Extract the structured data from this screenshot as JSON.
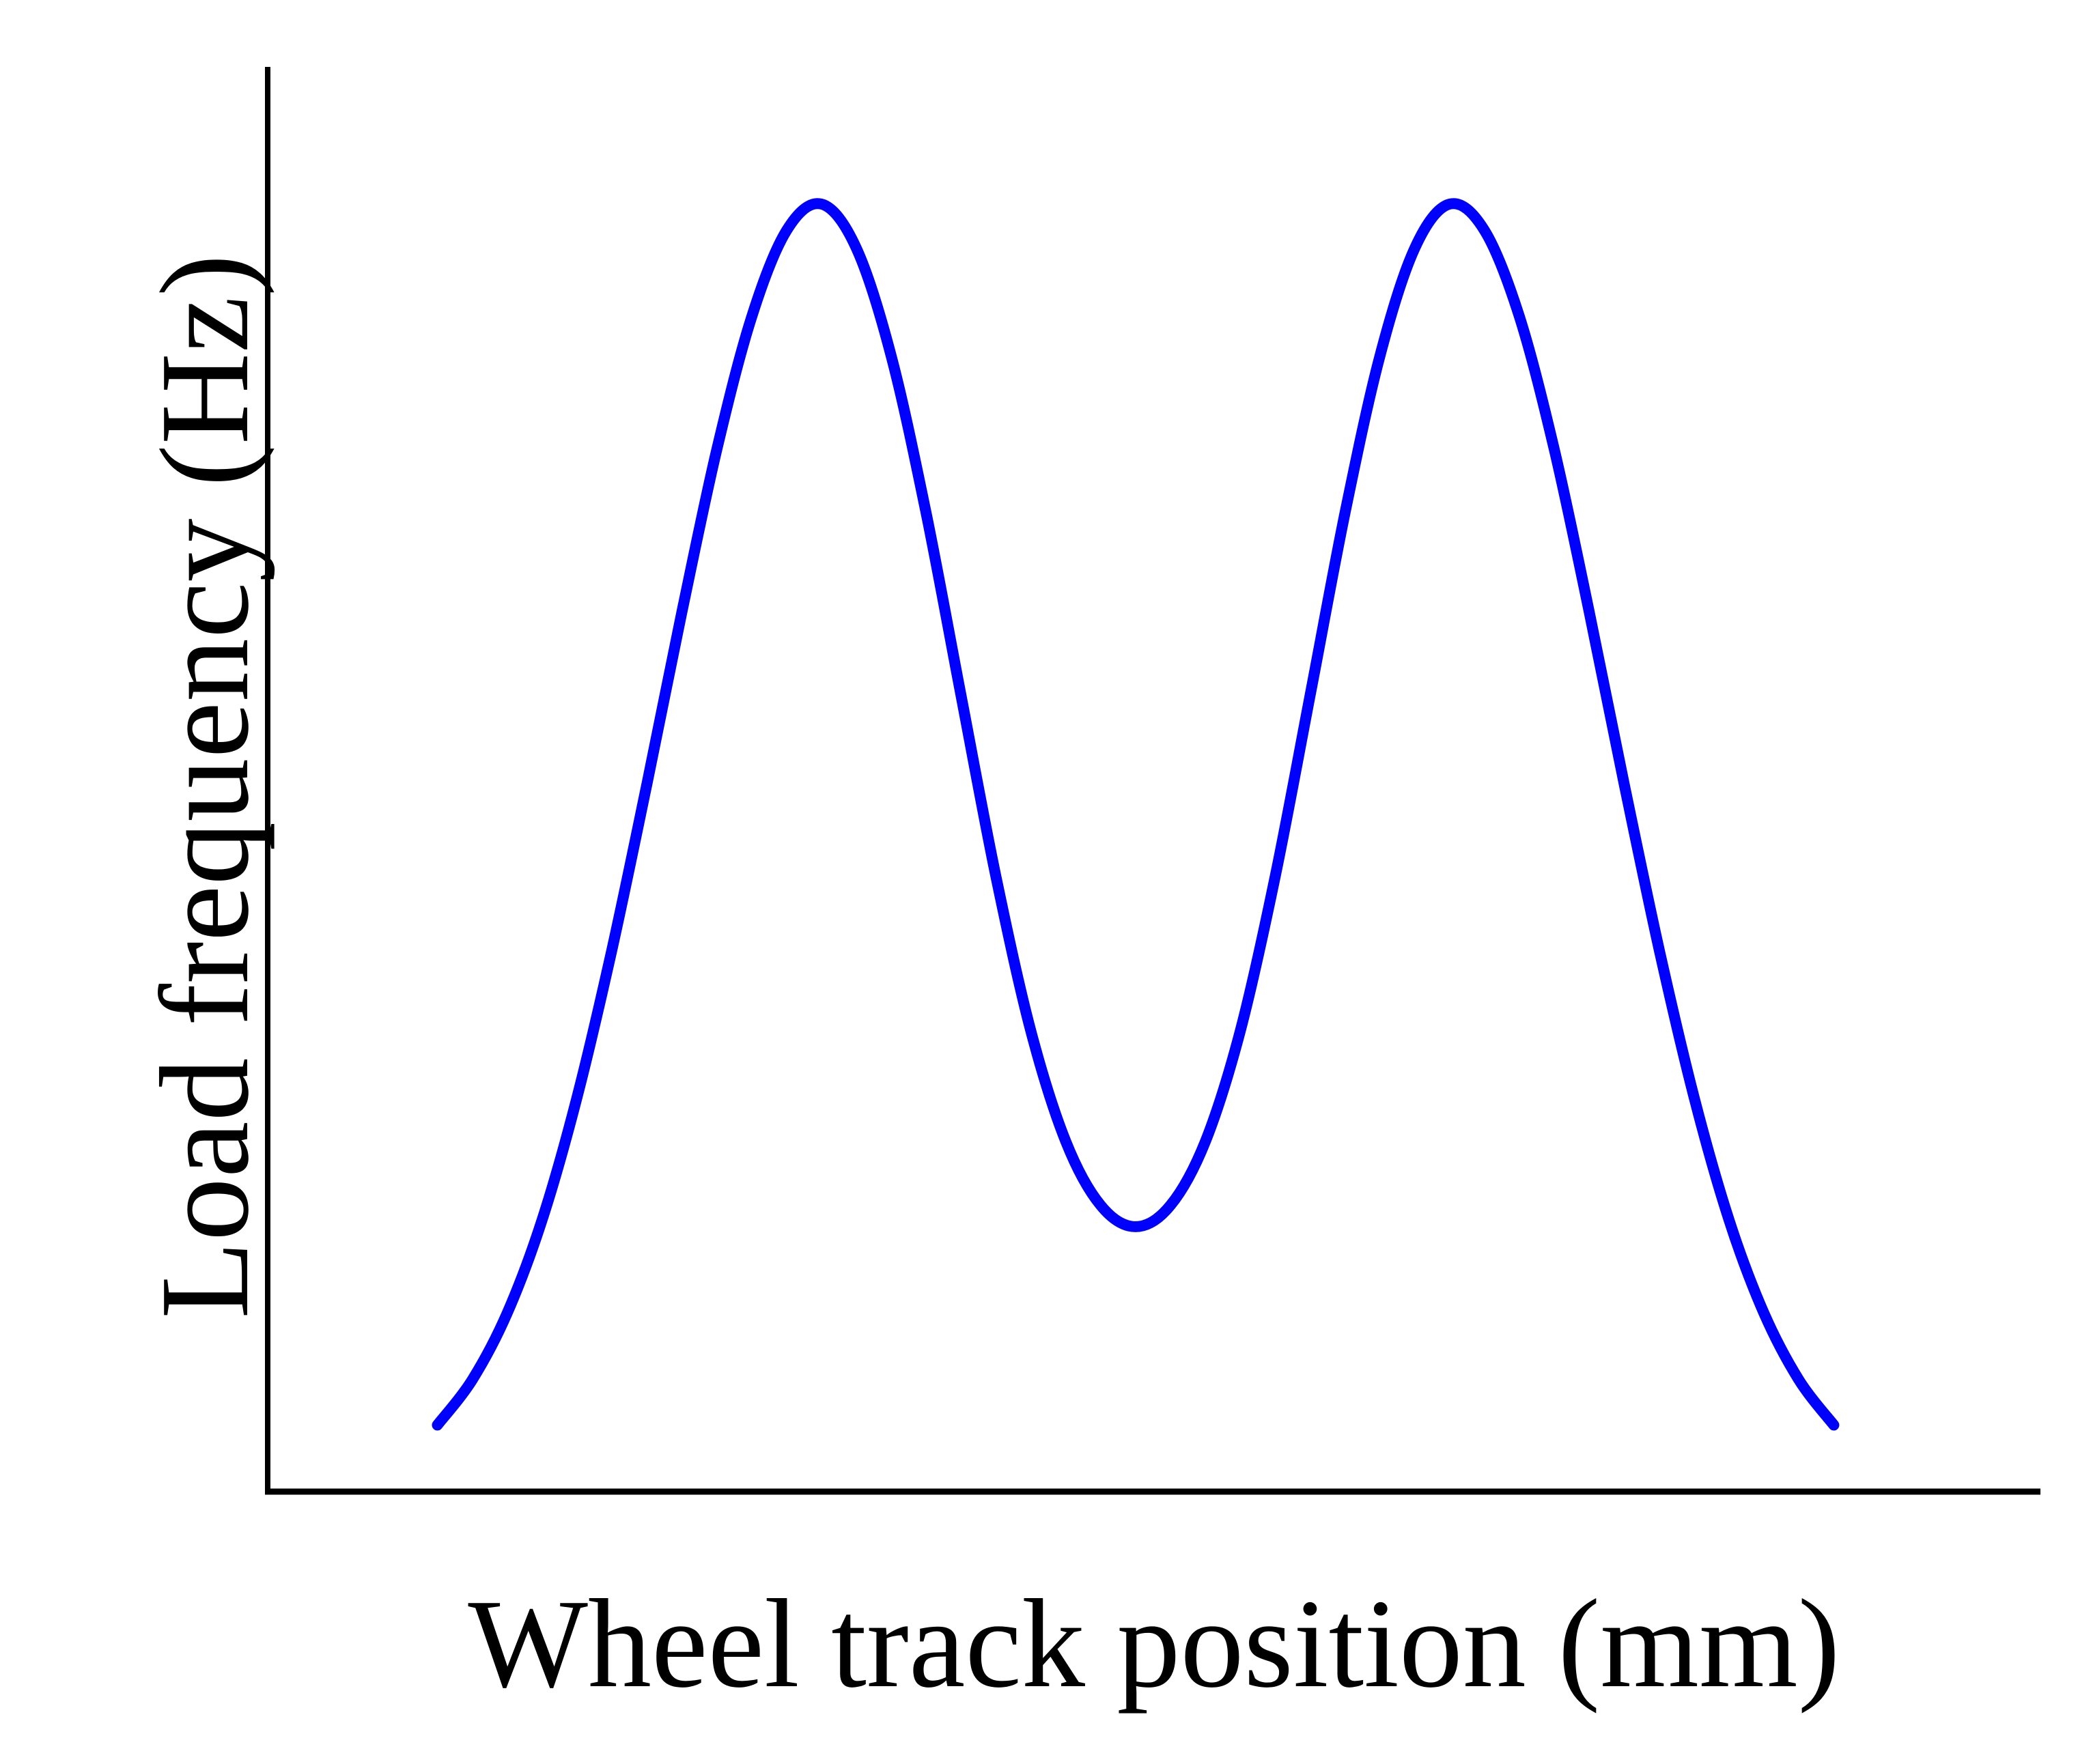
{
  "chart_data": {
    "type": "line",
    "title": "",
    "xlabel": "Wheel track position (mm)",
    "ylabel": "Load frequency (Hz)",
    "xticks": [],
    "yticks": [],
    "grid": false,
    "legend": "none",
    "series": [
      {
        "color": "#0000ff",
        "x": [
          0.0,
          0.5,
          1.0,
          1.5,
          2.0,
          2.5,
          3.0,
          3.5,
          4.0,
          4.5,
          5.0,
          5.5,
          6.0,
          6.5,
          7.0,
          7.5,
          8.0,
          8.5,
          9.0,
          9.5,
          10.0,
          10.5,
          11.0,
          11.5,
          12.0,
          12.5,
          13.0,
          13.5,
          14.0,
          14.5,
          15.0,
          15.5,
          16.0,
          16.5,
          17.0,
          17.5,
          18.0,
          18.5,
          19.0,
          19.5,
          20.0
        ],
        "y": [
          0.05,
          0.084,
          0.134,
          0.204,
          0.296,
          0.407,
          0.531,
          0.66,
          0.782,
          0.882,
          0.947,
          0.967,
          0.934,
          0.853,
          0.735,
          0.598,
          0.462,
          0.346,
          0.263,
          0.215,
          0.199,
          0.215,
          0.263,
          0.346,
          0.462,
          0.598,
          0.735,
          0.853,
          0.934,
          0.967,
          0.947,
          0.882,
          0.782,
          0.66,
          0.531,
          0.407,
          0.296,
          0.204,
          0.134,
          0.084,
          0.05
        ]
      }
    ],
    "xlim": [
      -2.43,
      22.96
    ],
    "ylim": [
      0.0,
      1.07
    ]
  }
}
